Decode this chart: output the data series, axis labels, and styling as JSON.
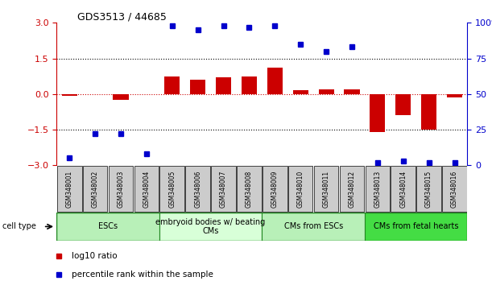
{
  "title": "GDS3513 / 44685",
  "samples": [
    "GSM348001",
    "GSM348002",
    "GSM348003",
    "GSM348004",
    "GSM348005",
    "GSM348006",
    "GSM348007",
    "GSM348008",
    "GSM348009",
    "GSM348010",
    "GSM348011",
    "GSM348012",
    "GSM348013",
    "GSM348014",
    "GSM348015",
    "GSM348016"
  ],
  "log10_ratio": [
    -0.08,
    0.0,
    -0.25,
    0.0,
    0.75,
    0.6,
    0.7,
    0.75,
    1.1,
    0.15,
    0.2,
    0.2,
    -1.6,
    -0.9,
    -1.5,
    -0.15
  ],
  "percentile_rank": [
    5,
    22,
    22,
    8,
    98,
    95,
    98,
    97,
    98,
    85,
    80,
    83,
    2,
    3,
    2,
    2
  ],
  "cell_type_groups": [
    {
      "label": "ESCs",
      "start": 0,
      "end": 3,
      "color": "#b8f0b8"
    },
    {
      "label": "embryoid bodies w/ beating\nCMs",
      "start": 4,
      "end": 7,
      "color": "#d8ffd8"
    },
    {
      "label": "CMs from ESCs",
      "start": 8,
      "end": 11,
      "color": "#b8f0b8"
    },
    {
      "label": "CMs from fetal hearts",
      "start": 12,
      "end": 15,
      "color": "#44dd44"
    }
  ],
  "bar_color": "#cc0000",
  "scatter_color": "#0000cc",
  "ylim_left": [
    -3,
    3
  ],
  "ylim_right": [
    0,
    100
  ],
  "yticks_left": [
    -3,
    -1.5,
    0,
    1.5,
    3
  ],
  "yticks_right": [
    0,
    25,
    50,
    75,
    100
  ],
  "legend_items": [
    {
      "label": "log10 ratio",
      "color": "#cc0000"
    },
    {
      "label": "percentile rank within the sample",
      "color": "#0000cc"
    }
  ]
}
